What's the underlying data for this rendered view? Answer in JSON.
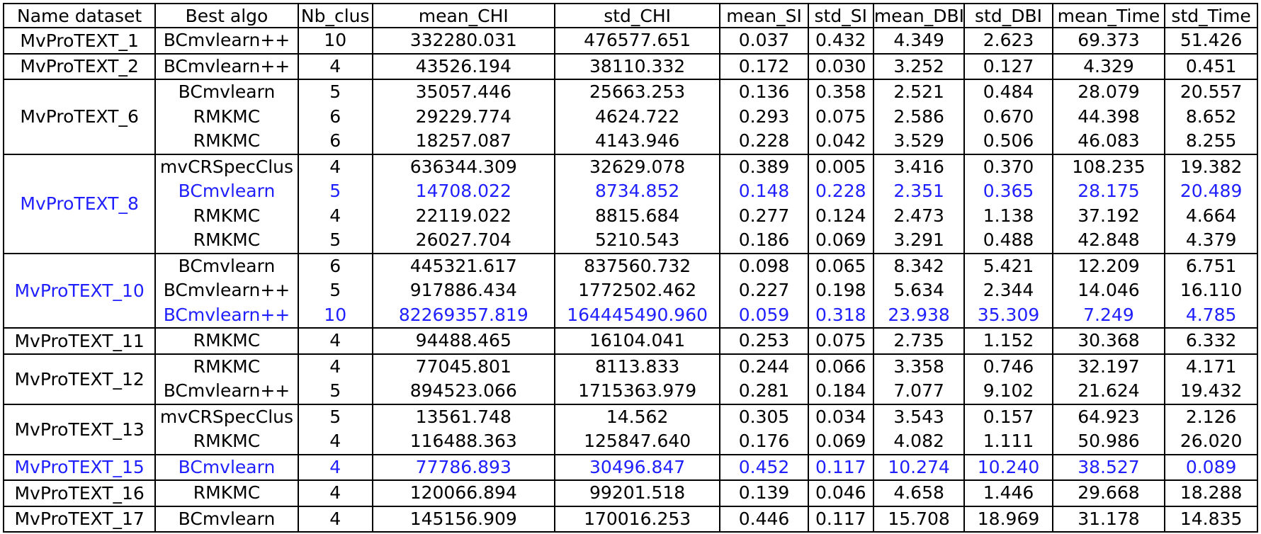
{
  "table": {
    "headers": [
      "Name dataset",
      "Best algo",
      "Nb_clus",
      "mean_CHI",
      "std_CHI",
      "mean_SI",
      "std_SI",
      "mean_DBI",
      "std_DBI",
      "mean_Time",
      "std_Time"
    ],
    "highlight_color": "#1f1fff",
    "groups": [
      {
        "dataset": "MvProTEXT_1",
        "dataset_highlight": false,
        "rows": [
          {
            "hl": false,
            "cells": [
              "BCmvlearn++",
              "10",
              "332280.031",
              "476577.651",
              "0.037",
              "0.432",
              "4.349",
              "2.623",
              "69.373",
              "51.426"
            ]
          }
        ]
      },
      {
        "dataset": "MvProTEXT_2",
        "dataset_highlight": false,
        "rows": [
          {
            "hl": false,
            "cells": [
              "BCmvlearn++",
              "4",
              "43526.194",
              "38110.332",
              "0.172",
              "0.030",
              "3.252",
              "0.127",
              "4.329",
              "0.451"
            ]
          }
        ]
      },
      {
        "dataset": "MvProTEXT_6",
        "dataset_highlight": false,
        "rows": [
          {
            "hl": false,
            "cells": [
              "BCmvlearn",
              "5",
              "35057.446",
              "25663.253",
              "0.136",
              "0.358",
              "2.521",
              "0.484",
              "28.079",
              "20.557"
            ]
          },
          {
            "hl": false,
            "cells": [
              "RMKMC",
              "6",
              "29229.774",
              "4624.722",
              "0.293",
              "0.075",
              "2.586",
              "0.670",
              "44.398",
              "8.652"
            ]
          },
          {
            "hl": false,
            "cells": [
              "RMKMC",
              "6",
              "18257.087",
              "4143.946",
              "0.228",
              "0.042",
              "3.529",
              "0.506",
              "46.083",
              "8.255"
            ]
          }
        ]
      },
      {
        "dataset": "MvProTEXT_8",
        "dataset_highlight": true,
        "rows": [
          {
            "hl": false,
            "cells": [
              "mvCRSpecClus",
              "4",
              "636344.309",
              "32629.078",
              "0.389",
              "0.005",
              "3.416",
              "0.370",
              "108.235",
              "19.382"
            ]
          },
          {
            "hl": true,
            "cells": [
              "BCmvlearn",
              "5",
              "14708.022",
              "8734.852",
              "0.148",
              "0.228",
              "2.351",
              "0.365",
              "28.175",
              "20.489"
            ]
          },
          {
            "hl": false,
            "cells": [
              "RMKMC",
              "4",
              "22119.022",
              "8815.684",
              "0.277",
              "0.124",
              "2.473",
              "1.138",
              "37.192",
              "4.664"
            ]
          },
          {
            "hl": false,
            "cells": [
              "RMKMC",
              "5",
              "26027.704",
              "5210.543",
              "0.186",
              "0.069",
              "3.291",
              "0.488",
              "42.848",
              "4.379"
            ]
          }
        ]
      },
      {
        "dataset": "MvProTEXT_10",
        "dataset_highlight": true,
        "rows": [
          {
            "hl": false,
            "cells": [
              "BCmvlearn",
              "6",
              "445321.617",
              "837560.732",
              "0.098",
              "0.065",
              "8.342",
              "5.421",
              "12.209",
              "6.751"
            ]
          },
          {
            "hl": false,
            "cells": [
              "BCmvlearn++",
              "5",
              "917886.434",
              "1772502.462",
              "0.227",
              "0.198",
              "5.634",
              "2.344",
              "14.046",
              "16.110"
            ]
          },
          {
            "hl": true,
            "cells": [
              "BCmvlearn++",
              "10",
              "82269357.819",
              "164445490.960",
              "0.059",
              "0.318",
              "23.938",
              "35.309",
              "7.249",
              "4.785"
            ]
          }
        ]
      },
      {
        "dataset": "MvProTEXT_11",
        "dataset_highlight": false,
        "rows": [
          {
            "hl": false,
            "cells": [
              "RMKMC",
              "4",
              "94488.465",
              "16104.041",
              "0.253",
              "0.075",
              "2.735",
              "1.152",
              "30.368",
              "6.332"
            ]
          }
        ]
      },
      {
        "dataset": "MvProTEXT_12",
        "dataset_highlight": false,
        "rows": [
          {
            "hl": false,
            "cells": [
              "RMKMC",
              "4",
              "77045.801",
              "8113.833",
              "0.244",
              "0.066",
              "3.358",
              "0.746",
              "32.197",
              "4.171"
            ]
          },
          {
            "hl": false,
            "cells": [
              "BCmvlearn++",
              "5",
              "894523.066",
              "1715363.979",
              "0.281",
              "0.184",
              "7.077",
              "9.102",
              "21.624",
              "19.432"
            ]
          }
        ]
      },
      {
        "dataset": "MvProTEXT_13",
        "dataset_highlight": false,
        "rows": [
          {
            "hl": false,
            "cells": [
              "mvCRSpecClus",
              "5",
              "13561.748",
              "14.562",
              "0.305",
              "0.034",
              "3.543",
              "0.157",
              "64.923",
              "2.126"
            ]
          },
          {
            "hl": false,
            "cells": [
              "RMKMC",
              "4",
              "116488.363",
              "125847.640",
              "0.176",
              "0.069",
              "4.082",
              "1.111",
              "50.986",
              "26.020"
            ]
          }
        ]
      },
      {
        "dataset": "MvProTEXT_15",
        "dataset_highlight": true,
        "rows": [
          {
            "hl": true,
            "cells": [
              "BCmvlearn",
              "4",
              "77786.893",
              "30496.847",
              "0.452",
              "0.117",
              "10.274",
              "10.240",
              "38.527",
              "0.089"
            ]
          }
        ]
      },
      {
        "dataset": "MvProTEXT_16",
        "dataset_highlight": false,
        "rows": [
          {
            "hl": false,
            "cells": [
              "RMKMC",
              "4",
              "120066.894",
              "99201.518",
              "0.139",
              "0.046",
              "4.658",
              "1.446",
              "29.668",
              "18.288"
            ]
          }
        ]
      },
      {
        "dataset": "MvProTEXT_17",
        "dataset_highlight": false,
        "rows": [
          {
            "hl": false,
            "cells": [
              "BCmvlearn",
              "4",
              "145156.909",
              "170016.253",
              "0.446",
              "0.117",
              "15.708",
              "18.969",
              "31.178",
              "14.835"
            ]
          }
        ]
      }
    ]
  }
}
